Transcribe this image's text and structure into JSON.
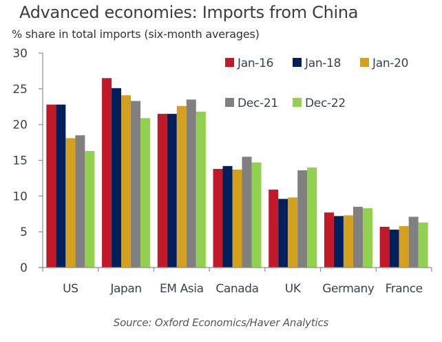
{
  "chart_data": {
    "type": "bar",
    "title": "Advanced economies: Imports from China",
    "subtitle": "% share in total imports (six-month averages)",
    "xlabel": "",
    "ylabel": "",
    "ylim": [
      0,
      30
    ],
    "yticks": [
      0,
      5,
      10,
      15,
      20,
      25,
      30
    ],
    "grid": false,
    "legend_position": "top-right",
    "categories": [
      "US",
      "Japan",
      "EM Asia",
      "Canada",
      "UK",
      "Germany",
      "France"
    ],
    "series": [
      {
        "name": "Jan-16",
        "color": "#C0192A",
        "values": [
          22.8,
          26.5,
          21.5,
          13.8,
          10.9,
          7.7,
          5.7
        ]
      },
      {
        "name": "Jan-18",
        "color": "#00205B",
        "values": [
          22.8,
          25.1,
          21.5,
          14.2,
          9.6,
          7.2,
          5.3
        ]
      },
      {
        "name": "Jan-20",
        "color": "#D4A020",
        "values": [
          18.1,
          24.1,
          22.6,
          13.7,
          9.8,
          7.3,
          5.8
        ]
      },
      {
        "name": "Dec-21",
        "color": "#808080",
        "values": [
          18.5,
          23.3,
          23.5,
          15.5,
          13.6,
          8.5,
          7.1
        ]
      },
      {
        "name": "Dec-22",
        "color": "#92D050",
        "values": [
          16.3,
          20.9,
          21.8,
          14.7,
          14.0,
          8.3,
          6.3
        ]
      }
    ],
    "source": "Source: Oxford Economics/Haver Analytics"
  }
}
